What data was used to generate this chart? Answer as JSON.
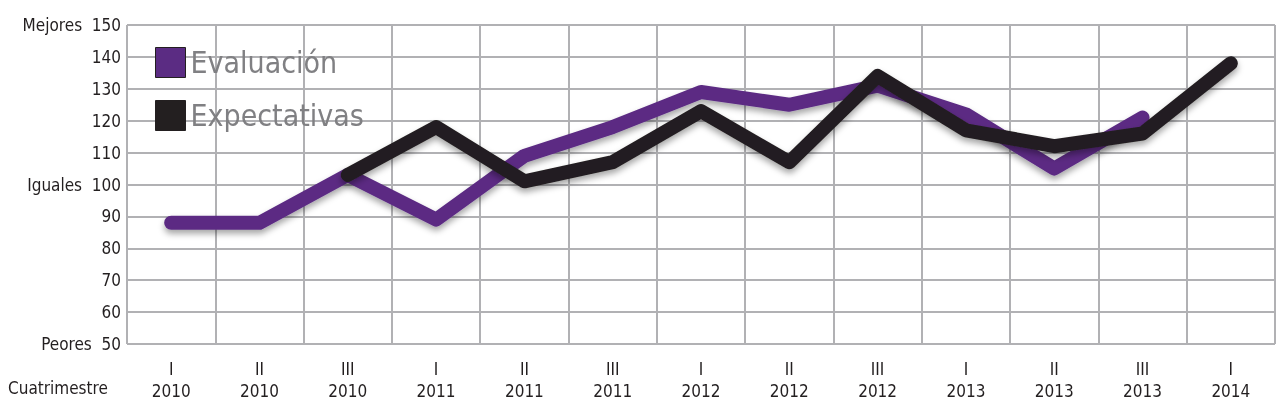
{
  "chart_data": {
    "type": "line",
    "categories": [
      "I 2010",
      "II 2010",
      "III 2010",
      "I 2011",
      "II 2011",
      "III 2011",
      "I 2012",
      "II 2012",
      "III 2012",
      "I 2013",
      "II 2013",
      "III 2013",
      "I 2014"
    ],
    "xlabel": "Cuatrimestre",
    "series": [
      {
        "name": "Evaluación",
        "color": "#5b2c83",
        "values": [
          88,
          88,
          103,
          89,
          109,
          118,
          129,
          125,
          131,
          122,
          105,
          121,
          null
        ]
      },
      {
        "name": "Expectativas",
        "color": "#231f20",
        "values": [
          null,
          null,
          103,
          118,
          101,
          107,
          123,
          107,
          134,
          117,
          112,
          116,
          138
        ]
      }
    ],
    "ylim": [
      50,
      150
    ],
    "yticks": [
      {
        "value": 50,
        "label": "Peores 50"
      },
      60,
      70,
      80,
      90,
      {
        "value": 100,
        "label": "Iguales 100"
      },
      110,
      120,
      130,
      140,
      {
        "value": 150,
        "label": "Mejores 150"
      }
    ],
    "grid": true,
    "legend": "top left",
    "marker": "none",
    "line_style": "solid"
  }
}
